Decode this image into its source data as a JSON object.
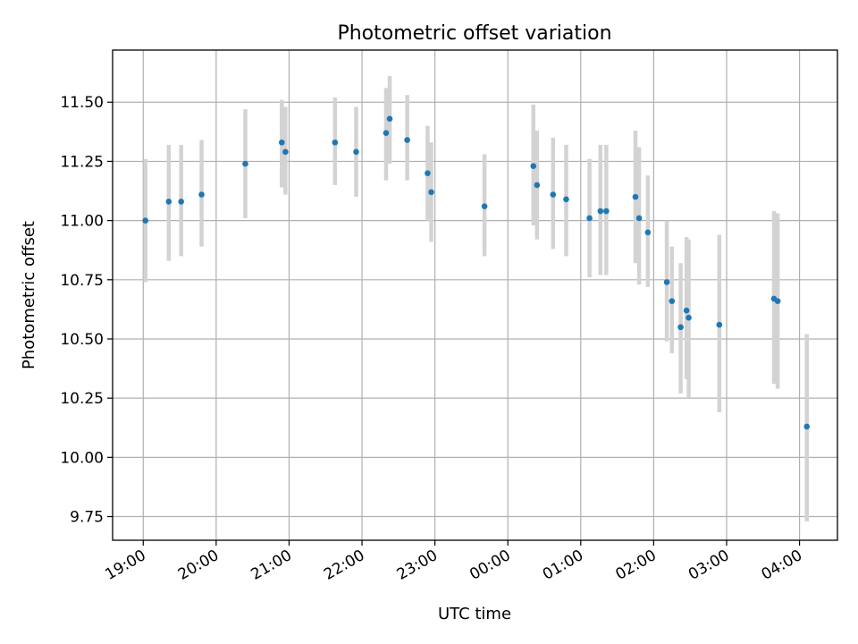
{
  "chart_data": {
    "type": "scatter",
    "title": "Photometric offset variation",
    "xlabel": "UTC time",
    "ylabel": "Photometric offset",
    "x_unit": "hours",
    "xlim": [
      18.58,
      28.52
    ],
    "ylim": [
      9.65,
      11.72
    ],
    "grid": true,
    "x_ticks": [
      {
        "value": 19,
        "label": "19:00"
      },
      {
        "value": 20,
        "label": "20:00"
      },
      {
        "value": 21,
        "label": "21:00"
      },
      {
        "value": 22,
        "label": "22:00"
      },
      {
        "value": 23,
        "label": "23:00"
      },
      {
        "value": 24,
        "label": "00:00"
      },
      {
        "value": 25,
        "label": "01:00"
      },
      {
        "value": 26,
        "label": "02:00"
      },
      {
        "value": 27,
        "label": "03:00"
      },
      {
        "value": 28,
        "label": "04:00"
      }
    ],
    "y_ticks": [
      {
        "value": 9.75,
        "label": "9.75"
      },
      {
        "value": 10.0,
        "label": "10.00"
      },
      {
        "value": 10.25,
        "label": "10.25"
      },
      {
        "value": 10.5,
        "label": "10.50"
      },
      {
        "value": 10.75,
        "label": "10.75"
      },
      {
        "value": 11.0,
        "label": "11.00"
      },
      {
        "value": 11.25,
        "label": "11.25"
      },
      {
        "value": 11.5,
        "label": "11.50"
      }
    ],
    "colors": {
      "point": "#1f77b4",
      "errorbar": "#d3d3d3",
      "grid": "#b0b0b0"
    },
    "points": [
      {
        "x": 19.03,
        "y": 11.0,
        "lo": 10.74,
        "hi": 11.26
      },
      {
        "x": 19.35,
        "y": 11.08,
        "lo": 10.83,
        "hi": 11.32
      },
      {
        "x": 19.52,
        "y": 11.08,
        "lo": 10.85,
        "hi": 11.32
      },
      {
        "x": 19.8,
        "y": 11.11,
        "lo": 10.89,
        "hi": 11.34
      },
      {
        "x": 20.4,
        "y": 11.24,
        "lo": 11.01,
        "hi": 11.47
      },
      {
        "x": 20.9,
        "y": 11.33,
        "lo": 11.14,
        "hi": 11.51
      },
      {
        "x": 20.95,
        "y": 11.29,
        "lo": 11.11,
        "hi": 11.48
      },
      {
        "x": 21.63,
        "y": 11.33,
        "lo": 11.15,
        "hi": 11.52
      },
      {
        "x": 21.92,
        "y": 11.29,
        "lo": 11.1,
        "hi": 11.48
      },
      {
        "x": 22.33,
        "y": 11.37,
        "lo": 11.17,
        "hi": 11.56
      },
      {
        "x": 22.38,
        "y": 11.43,
        "lo": 11.24,
        "hi": 11.61
      },
      {
        "x": 22.62,
        "y": 11.34,
        "lo": 11.17,
        "hi": 11.53
      },
      {
        "x": 22.9,
        "y": 11.2,
        "lo": 11.0,
        "hi": 11.4
      },
      {
        "x": 22.95,
        "y": 11.12,
        "lo": 10.91,
        "hi": 11.33
      },
      {
        "x": 23.68,
        "y": 11.06,
        "lo": 10.85,
        "hi": 11.28
      },
      {
        "x": 24.35,
        "y": 11.23,
        "lo": 10.98,
        "hi": 11.49
      },
      {
        "x": 24.4,
        "y": 11.15,
        "lo": 10.92,
        "hi": 11.38
      },
      {
        "x": 24.62,
        "y": 11.11,
        "lo": 10.88,
        "hi": 11.35
      },
      {
        "x": 24.8,
        "y": 11.09,
        "lo": 10.85,
        "hi": 11.32
      },
      {
        "x": 25.12,
        "y": 11.01,
        "lo": 10.76,
        "hi": 11.26
      },
      {
        "x": 25.27,
        "y": 11.04,
        "lo": 10.77,
        "hi": 11.32
      },
      {
        "x": 25.35,
        "y": 11.04,
        "lo": 10.77,
        "hi": 11.32
      },
      {
        "x": 25.75,
        "y": 11.1,
        "lo": 10.82,
        "hi": 11.38
      },
      {
        "x": 25.8,
        "y": 11.01,
        "lo": 10.73,
        "hi": 11.31
      },
      {
        "x": 25.92,
        "y": 10.95,
        "lo": 10.72,
        "hi": 11.19
      },
      {
        "x": 26.18,
        "y": 10.74,
        "lo": 10.49,
        "hi": 11.0
      },
      {
        "x": 26.25,
        "y": 10.66,
        "lo": 10.44,
        "hi": 10.89
      },
      {
        "x": 26.37,
        "y": 10.55,
        "lo": 10.27,
        "hi": 10.82
      },
      {
        "x": 26.45,
        "y": 10.62,
        "lo": 10.33,
        "hi": 10.93
      },
      {
        "x": 26.48,
        "y": 10.59,
        "lo": 10.25,
        "hi": 10.92
      },
      {
        "x": 26.9,
        "y": 10.56,
        "lo": 10.19,
        "hi": 10.94
      },
      {
        "x": 27.65,
        "y": 10.67,
        "lo": 10.31,
        "hi": 11.04
      },
      {
        "x": 27.7,
        "y": 10.66,
        "lo": 10.29,
        "hi": 11.03
      },
      {
        "x": 28.1,
        "y": 10.13,
        "lo": 9.73,
        "hi": 10.52
      }
    ]
  }
}
